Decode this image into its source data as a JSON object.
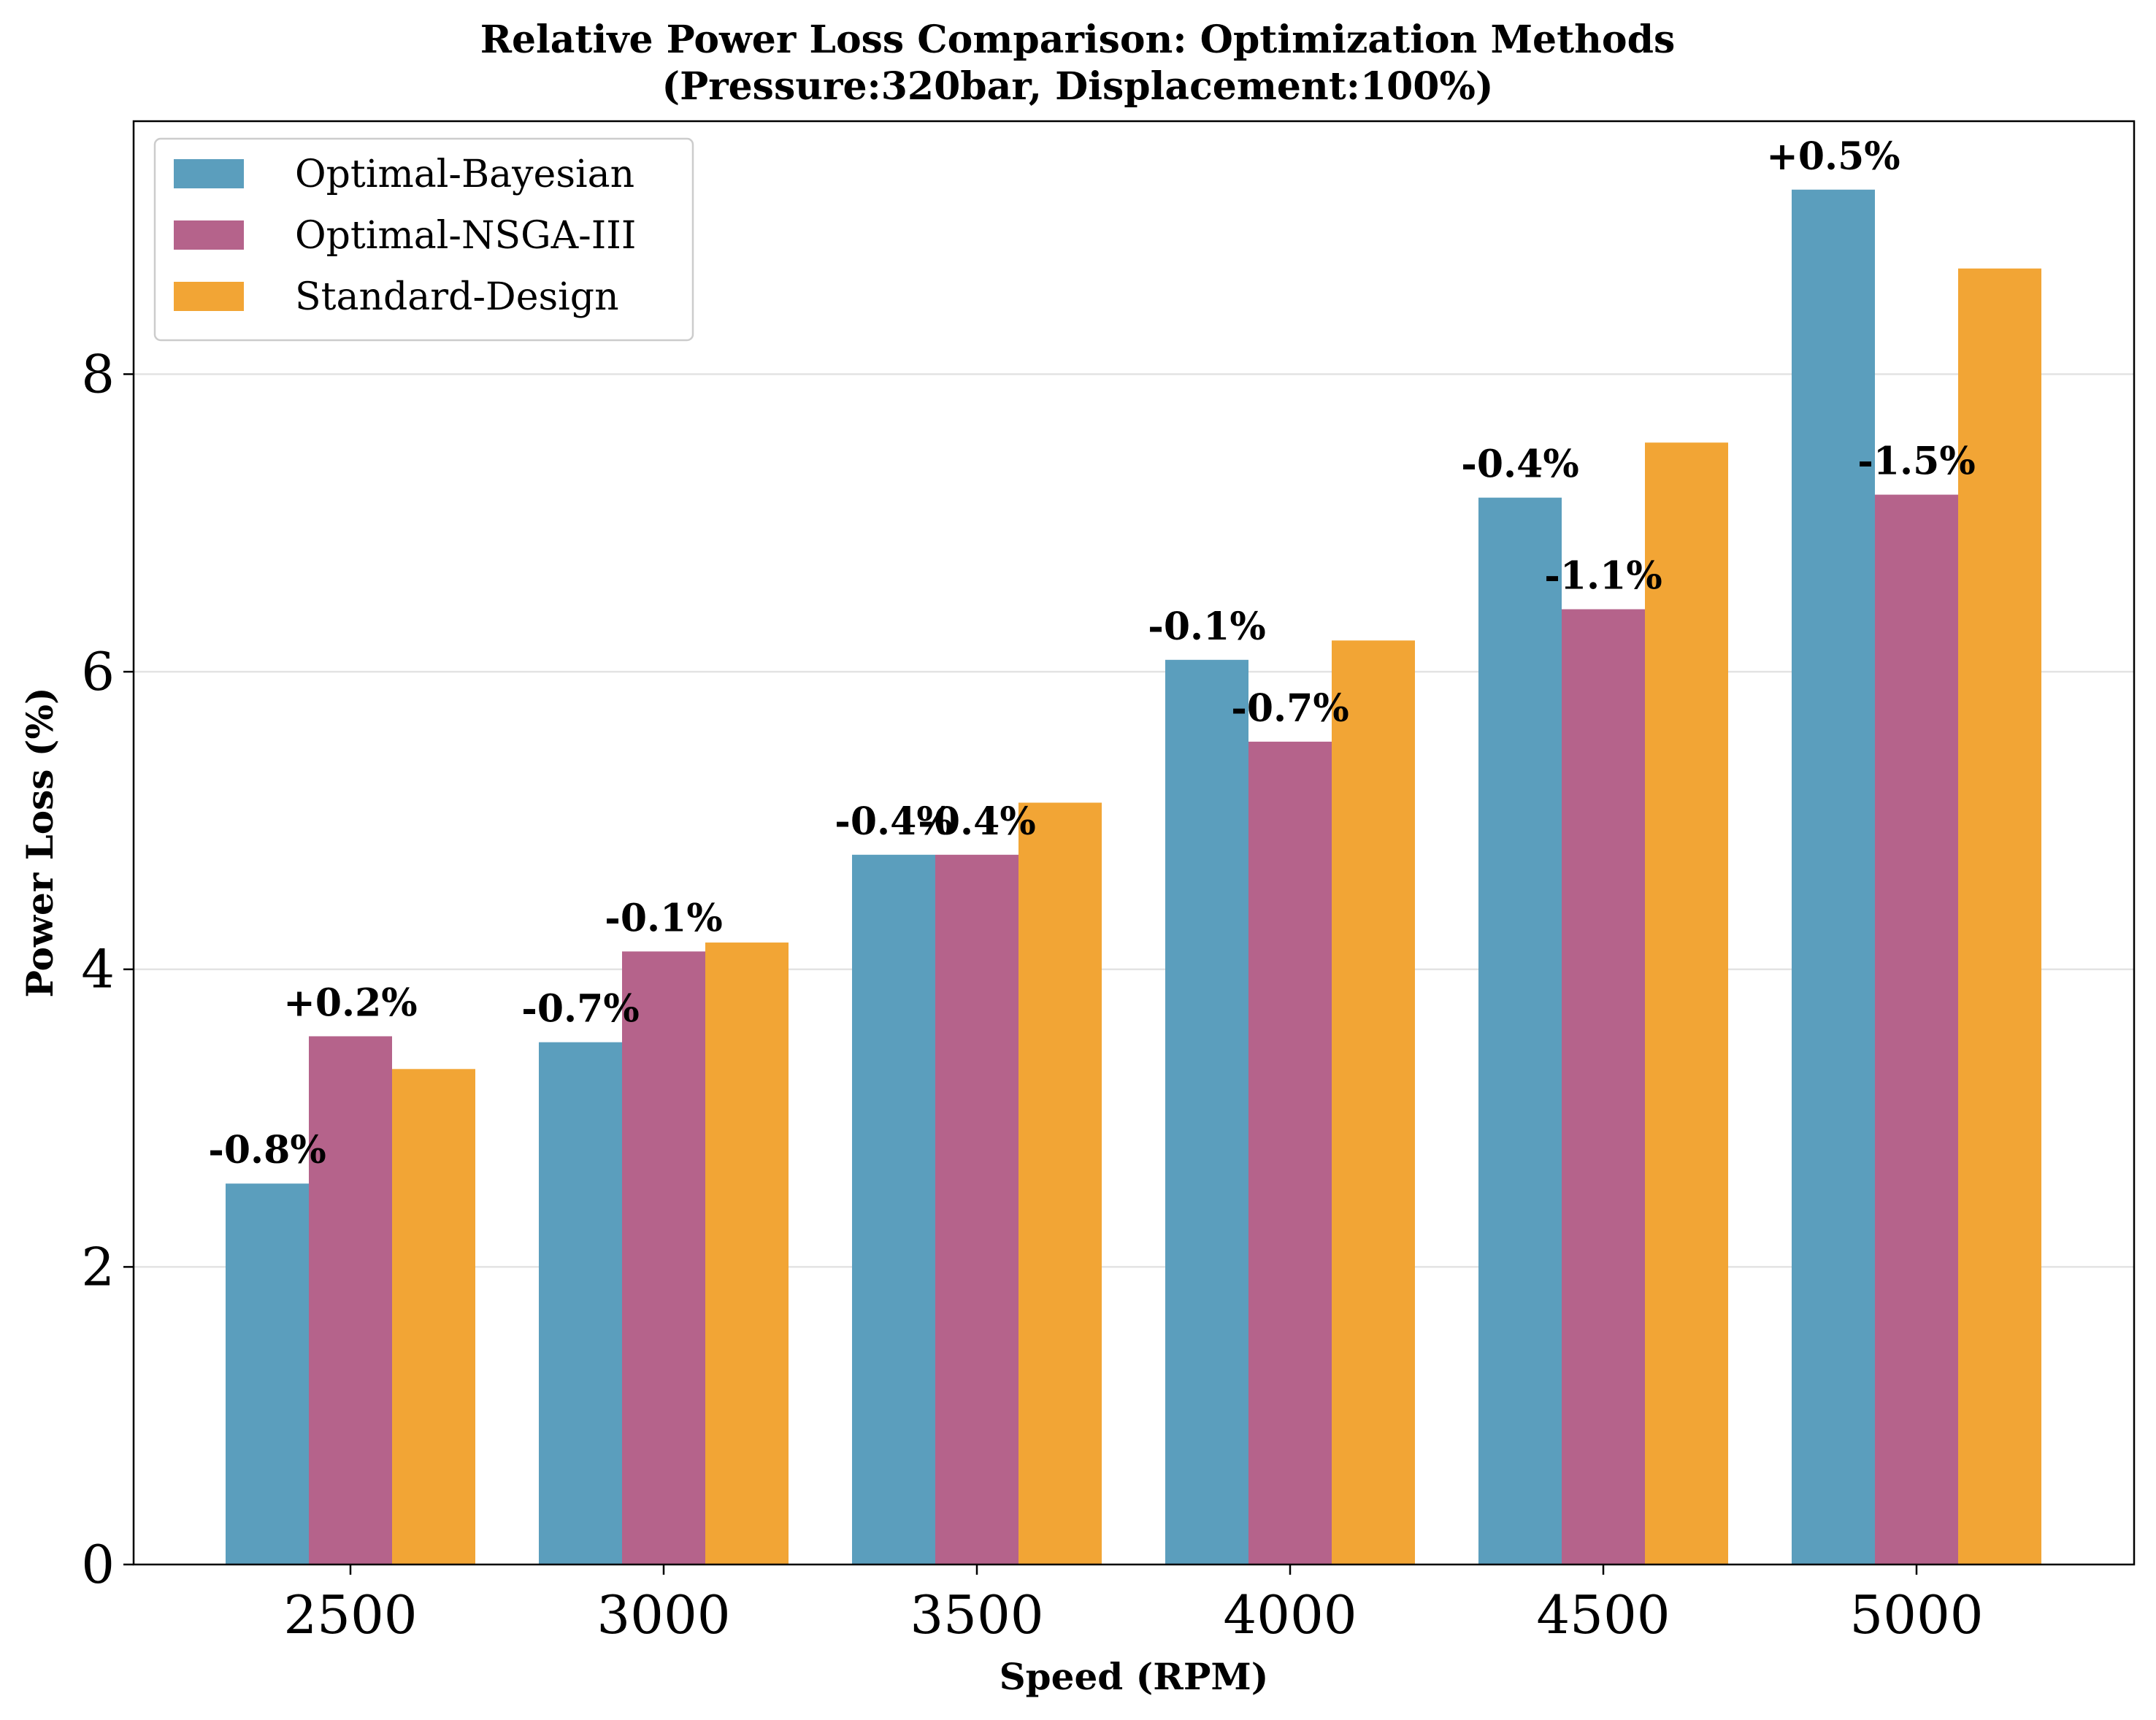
{
  "chart_data": {
    "type": "bar",
    "title": "Relative Power Loss Comparison: Optimization Methods",
    "subtitle": "(Pressure:320bar, Displacement:100%)",
    "xlabel": "Speed (RPM)",
    "ylabel": "Power Loss (%)",
    "categories": [
      "2500",
      "3000",
      "3500",
      "4000",
      "4500",
      "5000"
    ],
    "ylim": [
      0,
      9.7
    ],
    "yticks": [
      "0",
      "2",
      "4",
      "6",
      "8"
    ],
    "grid": "horizontal",
    "legend_position": "top-left",
    "series": [
      {
        "name": "Optimal-Bayesian",
        "color": "#5b9ebd",
        "values": [
          2.56,
          3.51,
          4.77,
          6.08,
          7.17,
          9.24
        ],
        "labels": [
          "-0.8%",
          "-0.7%",
          "-0.4%",
          "-0.1%",
          "-0.4%",
          "+0.5%"
        ]
      },
      {
        "name": "Optimal-NSGA-III",
        "color": "#b5638b",
        "values": [
          3.55,
          4.12,
          4.77,
          5.53,
          6.42,
          7.19
        ],
        "labels": [
          "+0.2%",
          "-0.1%",
          "-0.4%",
          "-0.7%",
          "-1.1%",
          "-1.5%"
        ]
      },
      {
        "name": "Standard-Design",
        "color": "#f2a535",
        "values": [
          3.33,
          4.18,
          5.12,
          6.21,
          7.54,
          8.71
        ],
        "labels": []
      }
    ]
  }
}
